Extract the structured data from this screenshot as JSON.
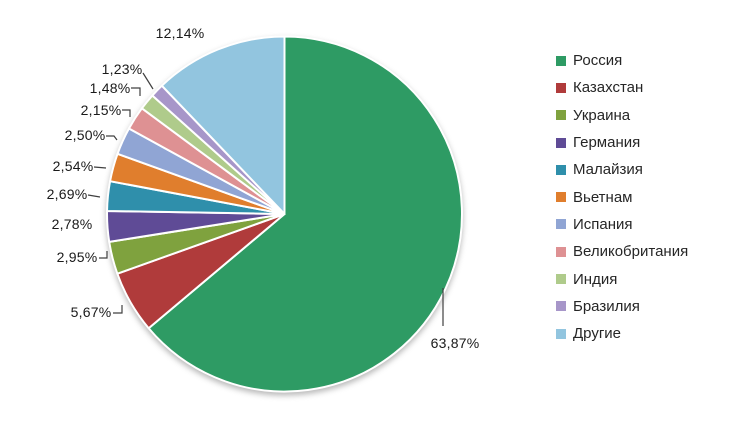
{
  "chart_data": {
    "type": "pie",
    "title": "",
    "legend_position": "right",
    "direction": "clockwise",
    "start_angle_deg": 0,
    "grid": false,
    "categories": [
      "Россия",
      "Казахстан",
      "Украина",
      "Германия",
      "Малайзия",
      "Вьетнам",
      "Испания",
      "Великобритания",
      "Индия",
      "Бразилия",
      "Другие"
    ],
    "values": [
      63.87,
      5.67,
      2.95,
      2.78,
      2.69,
      2.54,
      2.5,
      2.15,
      1.48,
      1.23,
      12.14
    ],
    "percent_labels": [
      "63,87%",
      "5,67%",
      "2,95%",
      "2,78%",
      "2,69%",
      "2,54%",
      "2,50%",
      "2,15%",
      "1,48%",
      "1,23%",
      "12,14%"
    ],
    "colors": [
      "#2e9b64",
      "#b03b3b",
      "#7fa23e",
      "#5f4b96",
      "#2f8fab",
      "#e07e2d",
      "#90a5d4",
      "#de9193",
      "#afcb8b",
      "#a796c9",
      "#92c5df"
    ]
  }
}
